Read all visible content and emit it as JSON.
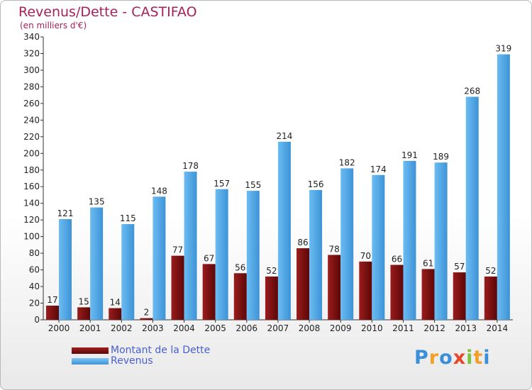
{
  "title": "Revenus/Dette - CASTIFAO",
  "subtitle": "(en milliers d'€)",
  "colors": {
    "dette": "#7a0e0e",
    "revenus": "#4ea6e6",
    "title": "#a8205a",
    "legend_text": "#4a5fd0"
  },
  "legend": [
    {
      "label": "Montant de la Dette",
      "color": "#7a0e0e"
    },
    {
      "label": "Revenus",
      "color": "#4ea6e6"
    }
  ],
  "logo": {
    "text": "Proxiti",
    "icon": "proxiti-logo"
  },
  "chart_data": {
    "type": "bar",
    "title": "Revenus/Dette - CASTIFAO",
    "subtitle": "(en milliers d'€)",
    "categories": [
      "2000",
      "2001",
      "2002",
      "2003",
      "2004",
      "2005",
      "2006",
      "2007",
      "2008",
      "2009",
      "2010",
      "2011",
      "2012",
      "2013",
      "2014"
    ],
    "series": [
      {
        "name": "Montant de la Dette",
        "values": [
          17,
          15,
          14,
          2,
          77,
          67,
          56,
          52,
          86,
          78,
          70,
          66,
          61,
          57,
          52
        ]
      },
      {
        "name": "Revenus",
        "values": [
          121,
          135,
          115,
          148,
          178,
          157,
          155,
          214,
          156,
          182,
          174,
          191,
          189,
          268,
          319
        ]
      }
    ],
    "ylim": [
      0,
      340
    ],
    "yticks": [
      0,
      20,
      40,
      60,
      80,
      100,
      120,
      140,
      160,
      180,
      200,
      220,
      240,
      260,
      280,
      300,
      320,
      340
    ],
    "grid": false,
    "legend_position": "bottom-left"
  }
}
